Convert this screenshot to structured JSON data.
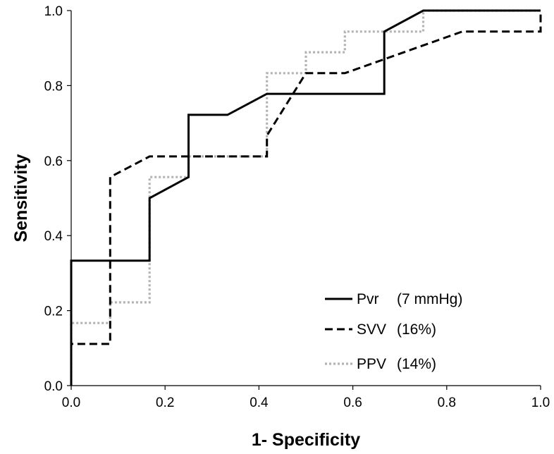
{
  "chart_data": {
    "type": "line",
    "title": "",
    "xlabel": "1- Specificity",
    "ylabel": "Sensitivity",
    "xlim": [
      0,
      1
    ],
    "ylim": [
      0,
      1
    ],
    "x_ticks": [
      "0.0",
      "0.2",
      "0.4",
      "0.6",
      "0.8",
      "1.0"
    ],
    "y_ticks": [
      "0.0",
      "0.2",
      "0.4",
      "0.6",
      "0.8",
      "1.0"
    ],
    "grid": false,
    "legend_position": "bottom-right",
    "series": [
      {
        "name": "Pvr",
        "cutoff": "(7 mmHg)",
        "style": "solid",
        "color": "#000000",
        "points": [
          [
            0,
            0
          ],
          [
            0,
            0.333
          ],
          [
            0.167,
            0.333
          ],
          [
            0.167,
            0.5
          ],
          [
            0.25,
            0.556
          ],
          [
            0.25,
            0.722
          ],
          [
            0.333,
            0.722
          ],
          [
            0.417,
            0.778
          ],
          [
            0.667,
            0.778
          ],
          [
            0.667,
            0.944
          ],
          [
            0.75,
            1.0
          ],
          [
            1.0,
            1.0
          ]
        ]
      },
      {
        "name": "SVV",
        "cutoff": "(16%)",
        "style": "dashed",
        "color": "#000000",
        "points": [
          [
            0,
            0
          ],
          [
            0,
            0.111
          ],
          [
            0.083,
            0.111
          ],
          [
            0.083,
            0.556
          ],
          [
            0.167,
            0.611
          ],
          [
            0.417,
            0.611
          ],
          [
            0.417,
            0.667
          ],
          [
            0.5,
            0.833
          ],
          [
            0.583,
            0.833
          ],
          [
            0.833,
            0.944
          ],
          [
            1.0,
            0.944
          ],
          [
            1.0,
            1.0
          ]
        ]
      },
      {
        "name": "PPV",
        "cutoff": "(14%)",
        "style": "dotted",
        "color": "#b3b3b3",
        "points": [
          [
            0,
            0
          ],
          [
            0,
            0.167
          ],
          [
            0.083,
            0.167
          ],
          [
            0.083,
            0.222
          ],
          [
            0.167,
            0.222
          ],
          [
            0.167,
            0.556
          ],
          [
            0.25,
            0.556
          ],
          [
            0.25,
            0.611
          ],
          [
            0.417,
            0.611
          ],
          [
            0.417,
            0.833
          ],
          [
            0.5,
            0.833
          ],
          [
            0.5,
            0.889
          ],
          [
            0.583,
            0.889
          ],
          [
            0.583,
            0.944
          ],
          [
            0.75,
            0.944
          ],
          [
            0.75,
            1.0
          ],
          [
            1.0,
            1.0
          ]
        ]
      }
    ]
  }
}
